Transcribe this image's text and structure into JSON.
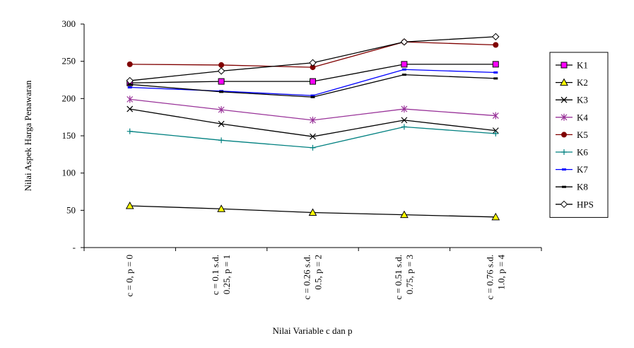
{
  "chart_data": {
    "type": "line",
    "xlabel": "Nilai Variable c dan p",
    "ylabel": "Nilai Aspek Harga Penawaran",
    "categories": [
      [
        "c = 0, p = 0"
      ],
      [
        "c = 0.1 s.d.",
        "0.25, p = 1"
      ],
      [
        "c = 0.26 s.d.",
        "0.5, p = 2"
      ],
      [
        "c = 0.51 s.d.",
        "0.75, p = 3"
      ],
      [
        "c = 0.76 s.d.",
        "1.0, p = 4"
      ]
    ],
    "ylim": [
      0,
      300
    ],
    "yticks": [
      {
        "value": 0,
        "label": "-"
      },
      {
        "value": 50,
        "label": "50"
      },
      {
        "value": 100,
        "label": "100"
      },
      {
        "value": 150,
        "label": "150"
      },
      {
        "value": 200,
        "label": "200"
      },
      {
        "value": 250,
        "label": "250"
      },
      {
        "value": 300,
        "label": "300"
      }
    ],
    "grid": false,
    "legend_position": "right",
    "series": [
      {
        "name": "K1",
        "values": [
          221,
          223,
          223,
          246,
          246
        ],
        "color": "#000000",
        "marker": "square",
        "marker_fill": "#ff00ff"
      },
      {
        "name": "K2",
        "values": [
          56,
          52,
          47,
          44,
          41
        ],
        "color": "#000000",
        "marker": "triangle",
        "marker_fill": "#ffff00"
      },
      {
        "name": "K3",
        "values": [
          186,
          166,
          149,
          171,
          157
        ],
        "color": "#000000",
        "marker": "x",
        "marker_fill": "#000000"
      },
      {
        "name": "K4",
        "values": [
          199,
          185,
          171,
          186,
          177
        ],
        "color": "#993399",
        "marker": "star",
        "marker_fill": "#993399"
      },
      {
        "name": "K5",
        "values": [
          246,
          245,
          242,
          276,
          272
        ],
        "color": "#800000",
        "marker": "circle",
        "marker_fill": "#800000"
      },
      {
        "name": "K6",
        "values": [
          156,
          144,
          134,
          162,
          153
        ],
        "color": "#008080",
        "marker": "plus",
        "marker_fill": "#008080"
      },
      {
        "name": "K7",
        "values": [
          215,
          210,
          204,
          239,
          235
        ],
        "color": "#0000ff",
        "marker": "dash",
        "marker_fill": "#0000ff"
      },
      {
        "name": "K8",
        "values": [
          219,
          209,
          202,
          232,
          227
        ],
        "color": "#000000",
        "marker": "dash",
        "marker_fill": "#000000"
      },
      {
        "name": "HPS",
        "values": [
          224,
          237,
          248,
          276,
          283
        ],
        "color": "#000000",
        "marker": "diamond",
        "marker_fill": "#ffffff"
      }
    ]
  }
}
